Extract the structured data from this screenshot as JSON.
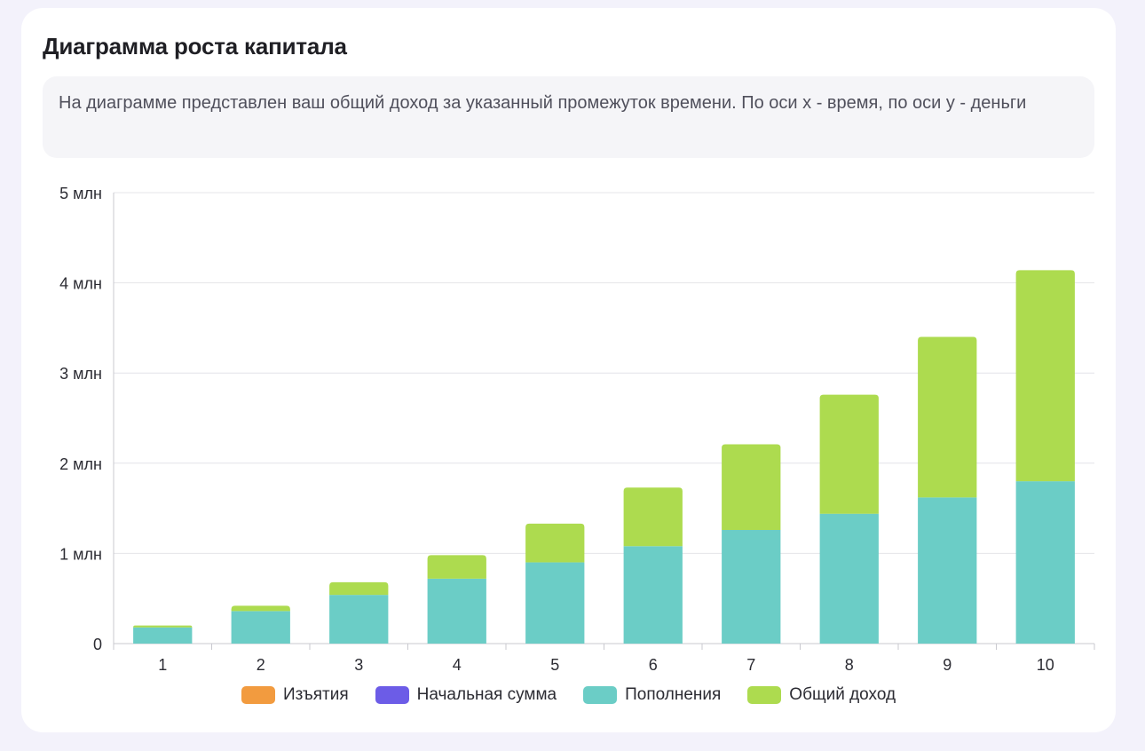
{
  "card": {
    "title": "Диаграмма роста капитала",
    "description": "На диаграмме представлен ваш общий доход за указанный промежуток времени. По оси x - время, по оси y - деньги"
  },
  "chart_data": {
    "type": "bar",
    "stacked": true,
    "title": "Диаграмма роста капитала",
    "xlabel": "",
    "ylabel": "",
    "categories": [
      "1",
      "2",
      "3",
      "4",
      "5",
      "6",
      "7",
      "8",
      "9",
      "10"
    ],
    "y_ticks": [
      {
        "value": 0,
        "label": "0"
      },
      {
        "value": 1000000,
        "label": "1 млн"
      },
      {
        "value": 2000000,
        "label": "2 млн"
      },
      {
        "value": 3000000,
        "label": "3 млн"
      },
      {
        "value": 4000000,
        "label": "4 млн"
      },
      {
        "value": 5000000,
        "label": "5 млн"
      }
    ],
    "ylim": [
      0,
      5000000
    ],
    "grid": true,
    "legend_position": "bottom",
    "series": [
      {
        "name": "Изъятия",
        "color": "#f29b3f",
        "values": [
          0,
          0,
          0,
          0,
          0,
          0,
          0,
          0,
          0,
          0
        ]
      },
      {
        "name": "Начальная сумма",
        "color": "#6c5ce7",
        "values": [
          0,
          0,
          0,
          0,
          0,
          0,
          0,
          0,
          0,
          0
        ]
      },
      {
        "name": "Пополнения",
        "color": "#6bcdc6",
        "values": [
          180000,
          360000,
          540000,
          720000,
          900000,
          1080000,
          1260000,
          1440000,
          1620000,
          1800000
        ]
      },
      {
        "name": "Общий доход",
        "color": "#addb4f",
        "values": [
          20000,
          60000,
          140000,
          260000,
          430000,
          650000,
          950000,
          1320000,
          1780000,
          2340000
        ]
      }
    ]
  }
}
